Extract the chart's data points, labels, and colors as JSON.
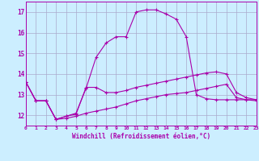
{
  "background_color": "#cceeff",
  "grid_color": "#aaaacc",
  "line_color": "#aa00aa",
  "xlabel": "Windchill (Refroidissement éolien,°C)",
  "xlim": [
    0,
    23
  ],
  "ylim": [
    11.5,
    17.5
  ],
  "yticks": [
    12,
    13,
    14,
    15,
    16,
    17
  ],
  "xticks": [
    0,
    1,
    2,
    3,
    4,
    5,
    6,
    7,
    8,
    9,
    10,
    11,
    12,
    13,
    14,
    15,
    16,
    17,
    18,
    19,
    20,
    21,
    22,
    23
  ],
  "series": [
    {
      "x": [
        0,
        1,
        2,
        3,
        4,
        5,
        6,
        7,
        8,
        9,
        10,
        11,
        12,
        13,
        14,
        15,
        16,
        17,
        18,
        19,
        20,
        21,
        22,
        23
      ],
      "y": [
        13.6,
        12.7,
        12.7,
        11.8,
        11.95,
        12.1,
        13.3,
        14.8,
        15.5,
        15.8,
        15.8,
        17.0,
        17.1,
        17.1,
        16.9,
        16.65,
        15.8,
        13.0,
        12.8,
        12.75,
        12.75,
        12.75,
        12.75,
        12.75
      ]
    },
    {
      "x": [
        0,
        1,
        2,
        3,
        4,
        5,
        6,
        7,
        8,
        9,
        10,
        11,
        12,
        13,
        14,
        15,
        16,
        17,
        18,
        19,
        20,
        21,
        22,
        23
      ],
      "y": [
        13.6,
        12.7,
        12.7,
        11.8,
        11.95,
        12.05,
        13.35,
        13.35,
        13.1,
        13.1,
        13.2,
        13.35,
        13.45,
        13.55,
        13.65,
        13.75,
        13.85,
        13.95,
        14.05,
        14.1,
        14.0,
        13.1,
        12.85,
        12.75
      ]
    },
    {
      "x": [
        0,
        1,
        2,
        3,
        4,
        5,
        6,
        7,
        8,
        9,
        10,
        11,
        12,
        13,
        14,
        15,
        16,
        17,
        18,
        19,
        20,
        21,
        22,
        23
      ],
      "y": [
        13.6,
        12.7,
        12.7,
        11.8,
        11.85,
        11.95,
        12.1,
        12.2,
        12.3,
        12.4,
        12.55,
        12.7,
        12.8,
        12.9,
        13.0,
        13.05,
        13.1,
        13.2,
        13.3,
        13.4,
        13.5,
        12.85,
        12.75,
        12.7
      ]
    }
  ]
}
